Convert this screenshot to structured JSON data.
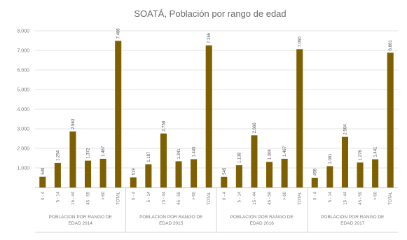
{
  "chart_data": {
    "type": "bar",
    "title": "SOATÁ, Población por rango de edad",
    "xlabel": "",
    "ylabel": "",
    "ylim": [
      0,
      8000
    ],
    "yticks": [
      "",
      "1.000",
      "2.000",
      "3.000",
      "4.000",
      "5.000",
      "6.000",
      "7.000",
      "8.000"
    ],
    "grid": true,
    "legend": "none",
    "bar_color": "#7f6000",
    "groups": [
      {
        "label_lines": [
          "POBLACION POR RANGO DE",
          "EDAD 2014"
        ],
        "categories": [
          "0 - 4",
          "5 - 14",
          "15 - 44",
          "45 - 59",
          "> 60",
          "TOTAL"
        ],
        "values": [
          549,
          1254,
          2863,
          1372,
          1467,
          7486
        ],
        "value_labels": [
          "549",
          "1.254",
          "2.863",
          "1.372",
          "1.467",
          "7.486"
        ]
      },
      {
        "label_lines": [
          "POBLACION POR RANGO DE",
          "EDAD 2015"
        ],
        "categories": [
          "0 - 4",
          "5 - 14",
          "15 - 44",
          "45 - 59",
          "> 60",
          "TOTAL"
        ],
        "values": [
          519,
          1187,
          2758,
          1341,
          1445,
          7255
        ],
        "value_labels": [
          "519",
          "1.187",
          "2.758",
          "1.341",
          "1.445",
          "7.255"
        ]
      },
      {
        "label_lines": [
          "POBLACION POR RANGO DE",
          "EDAD 2016"
        ],
        "categories": [
          "0 - 4",
          "5 - 14",
          "15 - 44",
          "45 - 59",
          "> 60",
          "TOTAL"
        ],
        "values": [
          545,
          1138,
          2666,
          1308,
          1467,
          7060
        ],
        "value_labels": [
          "545",
          "1.138",
          "2.666",
          "1.308",
          "1.467",
          "7.060"
        ]
      },
      {
        "label_lines": [
          "POBLACION POR RANGO DE",
          "EDAD 2017"
        ],
        "categories": [
          "0 - 4",
          "5 - 14",
          "15 - 44",
          "45 - 59",
          "> 60",
          "TOTAL"
        ],
        "values": [
          498,
          1091,
          2584,
          1276,
          1441,
          6881
        ],
        "value_labels": [
          "498",
          "1.091",
          "2.584",
          "1.276",
          "1.441",
          "6.881"
        ]
      }
    ]
  }
}
